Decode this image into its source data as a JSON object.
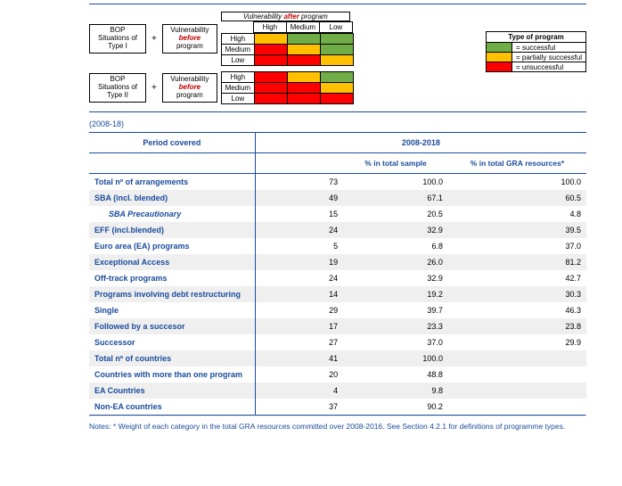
{
  "colors": {
    "successful": "#70ad47",
    "partial": "#ffc000",
    "unsuccessful": "#ff0000",
    "rule": "#1a4b9c"
  },
  "diagram": {
    "after_header": "Vulnerability ",
    "after_word": "after",
    "after_suffix": " program",
    "col_labels": [
      "High",
      "Medium",
      "Low"
    ],
    "row_labels": [
      "High",
      "Medium",
      "Low"
    ],
    "bop_box_prefix": "BOP\nSituations of\n",
    "type1": "Type I",
    "type2": "Type II",
    "vuln_before_prefix": "Vulnerability\n",
    "before_word": "before",
    "vuln_before_suffix": "\nprogram",
    "grid_type1": [
      [
        "#ffc000",
        "#70ad47",
        "#70ad47"
      ],
      [
        "#ff0000",
        "#ffc000",
        "#70ad47"
      ],
      [
        "#ff0000",
        "#ff0000",
        "#ffc000"
      ]
    ],
    "grid_type2": [
      [
        "#ff0000",
        "#ffc000",
        "#70ad47"
      ],
      [
        "#ff0000",
        "#ff0000",
        "#ffc000"
      ],
      [
        "#ff0000",
        "#ff0000",
        "#ff0000"
      ]
    ],
    "legend_title": "Type of program",
    "legend_items": [
      {
        "color": "#70ad47",
        "label": "= successful"
      },
      {
        "color": "#ffc000",
        "label": "= partially successful"
      },
      {
        "color": "#ff0000",
        "label": "= unsuccessful"
      }
    ]
  },
  "period_note": "(2008-18)",
  "table": {
    "period_header": "Period covered",
    "period_value": "2008-2018",
    "sub_headers": [
      "",
      "% in total sample",
      "% in total GRA resources*"
    ],
    "rows": [
      {
        "label": "Total nº of arrangements",
        "n": "73",
        "pct": "100.0",
        "gra": "100.0",
        "stripe": false
      },
      {
        "label": "SBA (incl. blended)",
        "n": "49",
        "pct": "67.1",
        "gra": "60.5",
        "stripe": true
      },
      {
        "label": "SBA Precautionary",
        "n": "15",
        "pct": "20.5",
        "gra": "4.8",
        "indent": 1,
        "stripe": false
      },
      {
        "label": "EFF (incl.blended)",
        "n": "24",
        "pct": "32.9",
        "gra": "39.5",
        "stripe": true
      },
      {
        "label": "Euro area (EA) programs",
        "n": "5",
        "pct": "6.8",
        "gra": "37.0",
        "stripe": false
      },
      {
        "label": "Exceptional Access",
        "n": "19",
        "pct": "26.0",
        "gra": "81.2",
        "stripe": true
      },
      {
        "label": "Off-track programs",
        "n": "24",
        "pct": "32.9",
        "gra": "42.7",
        "stripe": false
      },
      {
        "label": "Programs involving debt restructuring",
        "n": "14",
        "pct": "19.2",
        "gra": "30.3",
        "stripe": true
      },
      {
        "label": "Single",
        "n": "29",
        "pct": "39.7",
        "gra": "46.3",
        "stripe": false
      },
      {
        "label": "Followed by a succesor",
        "n": "17",
        "pct": "23.3",
        "gra": "23.8",
        "stripe": true
      },
      {
        "label": "Successor",
        "n": "27",
        "pct": "37.0",
        "gra": "29.9",
        "stripe": false
      },
      {
        "label": "Total nº of countries",
        "n": "41",
        "pct": "100.0",
        "gra": "",
        "stripe": true
      },
      {
        "label": "Countries with more than one program",
        "n": "20",
        "pct": "48.8",
        "gra": "",
        "stripe": false
      },
      {
        "label": "EA Countries",
        "n": "4",
        "pct": "9.8",
        "gra": "",
        "stripe": true
      },
      {
        "label": "Non-EA countries",
        "n": "37",
        "pct": "90.2",
        "gra": "",
        "stripe": false
      }
    ]
  },
  "notes": "Notes: * Weight of each category in the total GRA resources committed over 2008-2016. See Section 4.2.1 for definitions of programme types."
}
